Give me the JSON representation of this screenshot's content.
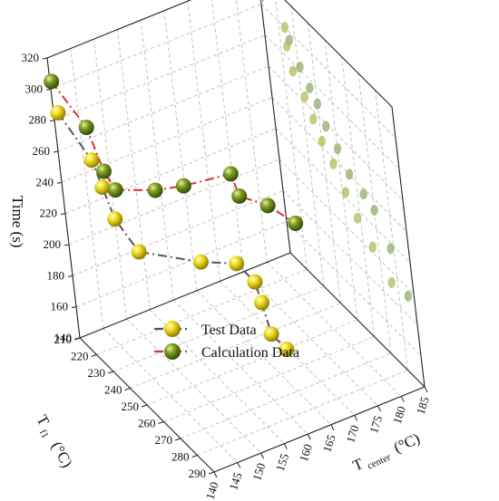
{
  "chart_data": {
    "type": "scatter3d",
    "axes": {
      "z": {
        "label": "Time  (s)",
        "range": [
          140,
          320
        ],
        "ticks": [
          "140",
          "160",
          "180",
          "200",
          "220",
          "240",
          "260",
          "280",
          "300",
          "320"
        ]
      },
      "x": {
        "label_main": "T",
        "label_sub": "center",
        "label_unit": "(°C)",
        "range": [
          140,
          185
        ],
        "ticks": [
          "140",
          "145",
          "150",
          "155",
          "160",
          "165",
          "170",
          "175",
          "180",
          "185"
        ]
      },
      "y": {
        "label_main": "T",
        "label_sub": "f1",
        "label_unit": "(°C)",
        "range": [
          210,
          290
        ],
        "ticks": [
          "210",
          "220",
          "230",
          "240",
          "250",
          "260",
          "270",
          "280",
          "290"
        ]
      }
    },
    "grid": true,
    "legend_position": "bottom-left",
    "series": [
      {
        "name": "Test Data",
        "marker_color": "#e0c800",
        "line_color": "#555555",
        "line_style": "dash-dot",
        "points": [
          {
            "x": 140,
            "y": 213,
            "z": 288
          },
          {
            "x": 140,
            "y": 232,
            "z": 278
          },
          {
            "x": 140,
            "y": 237,
            "z": 266
          },
          {
            "x": 140,
            "y": 243,
            "z": 252
          },
          {
            "x": 142,
            "y": 250,
            "z": 236
          },
          {
            "x": 152,
            "y": 258,
            "z": 226
          },
          {
            "x": 158,
            "y": 262,
            "z": 222
          },
          {
            "x": 158,
            "y": 273,
            "z": 222
          },
          {
            "x": 158,
            "y": 276,
            "z": 212
          },
          {
            "x": 158,
            "y": 280,
            "z": 196
          },
          {
            "x": 158,
            "y": 289,
            "z": 196
          }
        ]
      },
      {
        "name": "Calculation Data",
        "marker_color": "#6e8e1e",
        "line_color": "#e03030",
        "line_style": "dash-dot",
        "points": [
          {
            "x": 140,
            "y": 211,
            "z": 306
          },
          {
            "x": 140,
            "y": 231,
            "z": 298
          },
          {
            "x": 141,
            "y": 236,
            "z": 274
          },
          {
            "x": 142,
            "y": 239,
            "z": 264
          },
          {
            "x": 148,
            "y": 246,
            "z": 264
          },
          {
            "x": 153,
            "y": 249,
            "z": 264
          },
          {
            "x": 162,
            "y": 252,
            "z": 264
          },
          {
            "x": 162,
            "y": 256,
            "z": 254
          },
          {
            "x": 167,
            "y": 258,
            "z": 244
          },
          {
            "x": 171,
            "y": 262,
            "z": 232
          }
        ]
      }
    ],
    "projection_points": [
      {
        "y": 210,
        "z": 320
      },
      {
        "y": 211,
        "z": 306
      },
      {
        "y": 224,
        "z": 300
      },
      {
        "y": 226,
        "z": 294
      },
      {
        "y": 224,
        "z": 288
      },
      {
        "y": 231,
        "z": 282
      },
      {
        "y": 226,
        "z": 274
      },
      {
        "y": 236,
        "z": 274
      },
      {
        "y": 232,
        "z": 264
      },
      {
        "y": 240,
        "z": 268
      },
      {
        "y": 236,
        "z": 254
      },
      {
        "y": 244,
        "z": 258
      },
      {
        "y": 240,
        "z": 244
      },
      {
        "y": 250,
        "z": 250
      },
      {
        "y": 246,
        "z": 236
      },
      {
        "y": 256,
        "z": 240
      },
      {
        "y": 252,
        "z": 224
      },
      {
        "y": 264,
        "z": 236
      },
      {
        "y": 258,
        "z": 214
      },
      {
        "y": 270,
        "z": 232
      },
      {
        "y": 266,
        "z": 204
      },
      {
        "y": 278,
        "z": 216
      },
      {
        "y": 276,
        "z": 192
      },
      {
        "y": 286,
        "z": 194
      }
    ]
  }
}
